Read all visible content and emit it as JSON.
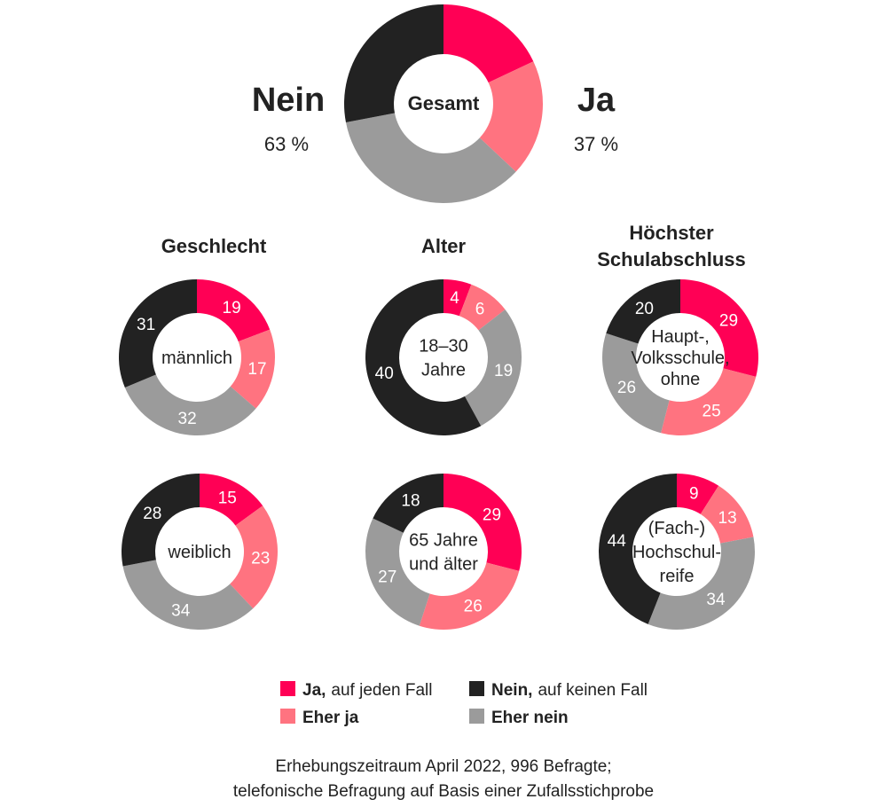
{
  "colors": {
    "ja_auf_jeden_fall": "#ff0055",
    "eher_ja": "#ff7380",
    "eher_nein": "#9b9b9b",
    "nein_auf_keinen_fall": "#222222"
  },
  "summary": {
    "center_label": "Gesamt",
    "nein_label": "Nein",
    "nein_pct": "63 %",
    "ja_label": "Ja",
    "ja_pct": "37 %"
  },
  "group_titles": {
    "geschlecht": "Geschlecht",
    "alter": "Alter",
    "schulabschluss_line1": "Höchster",
    "schulabschluss_line2": "Schulabschluss"
  },
  "legend": {
    "ja_bold": "Ja,",
    "ja_rest": "auf jeden Fall",
    "nein_bold": "Nein,",
    "nein_rest": "auf keinen Fall",
    "eher_ja": "Eher ja",
    "eher_nein": "Eher nein"
  },
  "footer": {
    "line1": "Erhebungszeitraum April 2022, 996 Befragte;",
    "line2": "telefonische Befragung auf Basis einer Zufallsstichprobe"
  },
  "chart_data": {
    "type": "pie",
    "variant": "donut",
    "category_order": [
      "Ja, auf jeden Fall",
      "Eher ja",
      "Eher nein",
      "Nein, auf keinen Fall"
    ],
    "charts": [
      {
        "key": "gesamt",
        "group": "Gesamt",
        "label_lines": [
          "Gesamt"
        ],
        "values": [
          18,
          19,
          35,
          28
        ],
        "show_values": false
      },
      {
        "key": "maennlich",
        "group": "Geschlecht",
        "label_lines": [
          "männlich"
        ],
        "values": [
          19,
          17,
          32,
          31
        ],
        "show_values": true
      },
      {
        "key": "weiblich",
        "group": "Geschlecht",
        "label_lines": [
          "weiblich"
        ],
        "values": [
          15,
          23,
          34,
          28
        ],
        "show_values": true
      },
      {
        "key": "alter_18_30",
        "group": "Alter",
        "label_lines": [
          "18–30",
          "Jahre"
        ],
        "values": [
          4,
          6,
          19,
          40
        ],
        "show_values": true
      },
      {
        "key": "alter_65",
        "group": "Alter",
        "label_lines": [
          "65 Jahre",
          "und älter"
        ],
        "values": [
          29,
          26,
          27,
          18
        ],
        "show_values": true
      },
      {
        "key": "hauptschule",
        "group": "Höchster Schulabschluss",
        "label_lines": [
          "Haupt-,",
          "Volksschule,",
          "ohne"
        ],
        "values": [
          29,
          25,
          26,
          20
        ],
        "show_values": true
      },
      {
        "key": "hochschulreife",
        "group": "Höchster Schulabschluss",
        "label_lines": [
          "(Fach-)",
          "Hochschul-",
          "reife"
        ],
        "values": [
          9,
          13,
          34,
          44
        ],
        "show_values": true
      }
    ]
  }
}
